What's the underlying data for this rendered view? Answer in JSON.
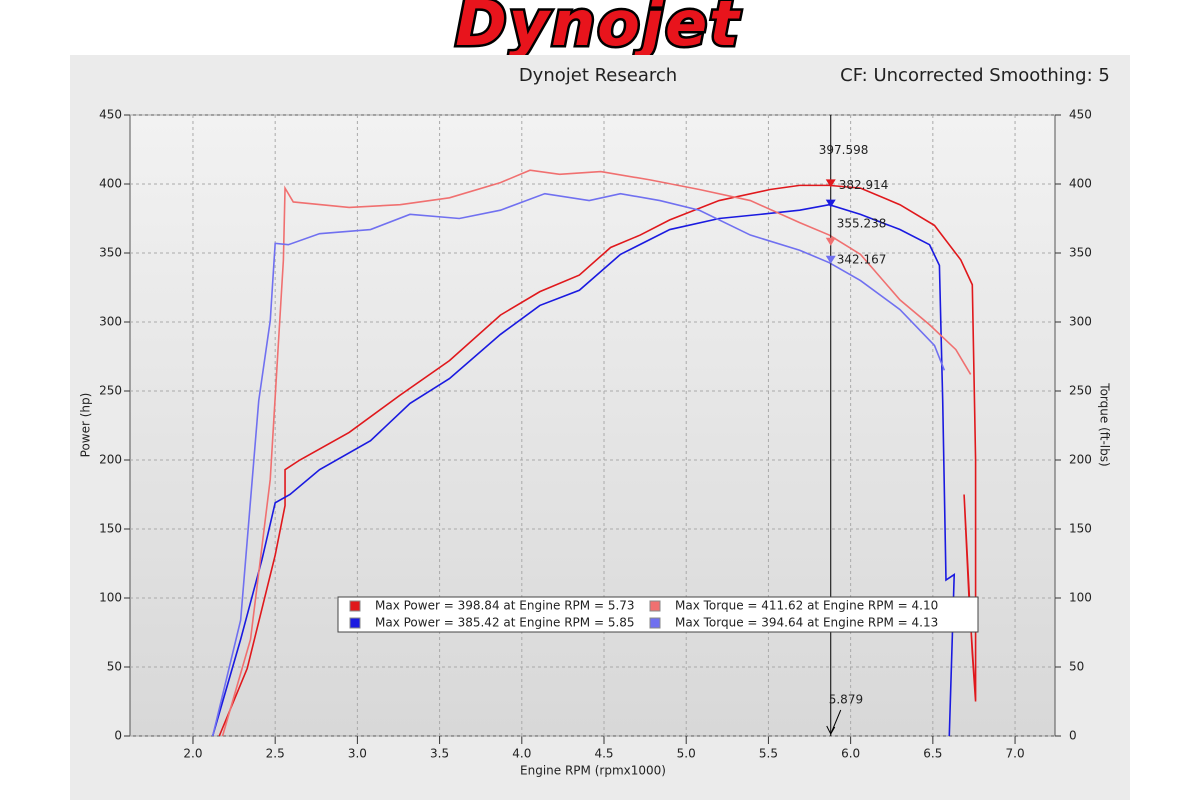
{
  "logo": "Dynojet",
  "chart_data": {
    "type": "line",
    "title": "Dynojet Research",
    "subtitle": "CF: Uncorrected Smoothing: 5",
    "xlabel": "Engine RPM (rpmx1000)",
    "ylabel": "Power (hp)",
    "y2label": "Torque (ft-lbs)",
    "xlim": [
      1.617,
      7.243
    ],
    "ylim": [
      0,
      450
    ],
    "y2lim": [
      0,
      450
    ],
    "xticks": [
      {
        "value": 2,
        "label": "2.0"
      },
      {
        "value": 2.5,
        "label": "2.5"
      },
      {
        "value": 3,
        "label": "3.0"
      },
      {
        "value": 3.5,
        "label": "3.5"
      },
      {
        "value": 4,
        "label": "4.0"
      },
      {
        "value": 4.5,
        "label": "4.5"
      },
      {
        "value": 5,
        "label": "5.0"
      },
      {
        "value": 5.5,
        "label": "5.5"
      },
      {
        "value": 6,
        "label": "6.0"
      },
      {
        "value": 6.5,
        "label": "6.5"
      },
      {
        "value": 7,
        "label": "7.0"
      }
    ],
    "yticks": [
      0,
      50,
      100,
      150,
      200,
      250,
      300,
      350,
      400,
      450
    ],
    "y2ticks": [
      0,
      50,
      100,
      150,
      200,
      250,
      300,
      350,
      400,
      450
    ],
    "grid": true,
    "cursor_x": 5.879,
    "series": [
      {
        "name": "Max Power = 398.84 at Engine RPM = 5.73",
        "color": "#e0181c",
        "axis": "y",
        "cursor_value": 397.598,
        "x": [
          2.16,
          2.33,
          2.5,
          2.56,
          2.56,
          2.65,
          2.95,
          3.26,
          3.56,
          3.87,
          4.11,
          4.35,
          4.54,
          4.72,
          4.9,
          5.2,
          5.51,
          5.69,
          5.87,
          6.06,
          6.3,
          6.51,
          6.67,
          6.74,
          6.76,
          6.76,
          6.72,
          6.69,
          6.74,
          6.76
        ],
        "values": [
          0,
          49,
          131,
          167,
          193,
          200,
          220,
          247,
          272,
          305,
          322,
          334,
          354,
          363,
          374,
          388,
          396,
          399,
          399,
          397,
          385,
          370,
          345,
          327,
          200,
          26,
          100,
          175,
          60,
          25
        ]
      },
      {
        "name": "Max Power = 385.42 at Engine RPM = 5.85",
        "color": "#1a1ae0",
        "axis": "y",
        "cursor_value": 382.914,
        "x": [
          2.12,
          2.29,
          2.42,
          2.5,
          2.59,
          2.77,
          3.08,
          3.32,
          3.56,
          3.87,
          4.11,
          4.35,
          4.6,
          4.9,
          5.2,
          5.45,
          5.69,
          5.87,
          6.06,
          6.3,
          6.48,
          6.54,
          6.56,
          6.58,
          6.63,
          6.6
        ],
        "values": [
          0,
          70,
          128,
          169,
          175,
          193,
          214,
          241,
          259,
          291,
          312,
          323,
          349,
          367,
          375,
          378,
          381,
          385,
          378,
          367,
          356,
          341,
          243,
          113,
          117,
          0
        ]
      },
      {
        "name": "Max Torque = 411.62 at Engine RPM = 4.10",
        "color": "#f07070",
        "axis": "y2",
        "cursor_value": 355.238,
        "x": [
          2.18,
          2.35,
          2.47,
          2.55,
          2.56,
          2.61,
          2.95,
          3.26,
          3.56,
          3.87,
          4.05,
          4.23,
          4.48,
          4.78,
          5.08,
          5.39,
          5.69,
          5.87,
          6.06,
          6.3,
          6.48,
          6.64,
          6.73
        ],
        "values": [
          0,
          70,
          186,
          345,
          397,
          387,
          383,
          385,
          390,
          401,
          410,
          407,
          409,
          403,
          396,
          388,
          372,
          363,
          349,
          316,
          298,
          280,
          262
        ]
      },
      {
        "name": "Max Torque = 394.64 at Engine RPM = 4.13",
        "color": "#7070f0",
        "axis": "y2",
        "cursor_value": 342.167,
        "x": [
          2.12,
          2.29,
          2.4,
          2.47,
          2.5,
          2.58,
          2.77,
          3.08,
          3.32,
          3.62,
          3.87,
          4.14,
          4.41,
          4.6,
          4.84,
          5.08,
          5.39,
          5.69,
          5.87,
          6.06,
          6.3,
          6.51,
          6.57
        ],
        "values": [
          0,
          84,
          243,
          301,
          357,
          356,
          364,
          367,
          378,
          375,
          381,
          393,
          388,
          393,
          388,
          381,
          363,
          352,
          343,
          330,
          309,
          283,
          265
        ]
      }
    ]
  }
}
